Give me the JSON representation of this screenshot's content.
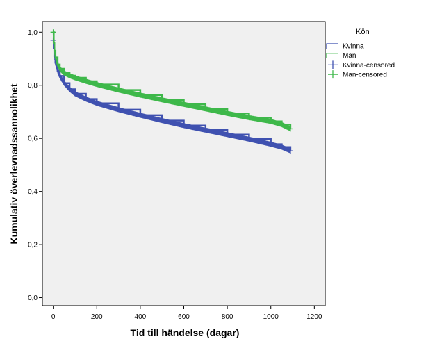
{
  "chart_data": {
    "type": "line",
    "subtype": "kaplan-meier survival",
    "title": "",
    "xlabel": "Tid till händelse (dagar)",
    "ylabel": "Kumulativ överlevnadssannolikhet",
    "xlim": [
      -50,
      1250
    ],
    "ylim": [
      -0.03,
      1.04
    ],
    "xticks": [
      0,
      200,
      400,
      600,
      800,
      1000,
      1200
    ],
    "xtick_labels": [
      "0",
      "200",
      "400",
      "600",
      "800",
      "1000",
      "1200"
    ],
    "yticks": [
      0.0,
      0.2,
      0.4,
      0.6,
      0.8,
      1.0
    ],
    "ytick_labels": [
      "0,0",
      "0,2",
      "0,4",
      "0,6",
      "0,8",
      "1,0"
    ],
    "grid": false,
    "plot_background": "#f0f0f0",
    "legend": {
      "title": "Kön",
      "placement": "right",
      "entries": [
        {
          "label": "Kvinna",
          "color": "#3f51b0",
          "symbol": "step"
        },
        {
          "label": "Man",
          "color": "#3eb84a",
          "symbol": "step"
        },
        {
          "label": "Kvinna-censored",
          "color": "#3f51b0",
          "symbol": "plus"
        },
        {
          "label": "Man-censored",
          "color": "#3eb84a",
          "symbol": "plus"
        }
      ]
    },
    "series": [
      {
        "name": "Kvinna",
        "color": "#3f51b0",
        "x": [
          0,
          2,
          5,
          10,
          20,
          30,
          50,
          75,
          100,
          150,
          200,
          300,
          400,
          500,
          600,
          700,
          800,
          900,
          1000,
          1050,
          1090
        ],
        "y": [
          0.97,
          0.94,
          0.91,
          0.885,
          0.855,
          0.835,
          0.808,
          0.785,
          0.768,
          0.748,
          0.732,
          0.708,
          0.687,
          0.667,
          0.648,
          0.631,
          0.614,
          0.597,
          0.578,
          0.567,
          0.553
        ]
      },
      {
        "name": "Man",
        "color": "#3eb84a",
        "x": [
          0,
          2,
          5,
          10,
          20,
          30,
          50,
          75,
          100,
          150,
          200,
          300,
          400,
          500,
          600,
          700,
          800,
          900,
          1000,
          1050,
          1090
        ],
        "y": [
          1.0,
          0.96,
          0.93,
          0.905,
          0.878,
          0.862,
          0.846,
          0.836,
          0.828,
          0.815,
          0.803,
          0.782,
          0.763,
          0.745,
          0.728,
          0.711,
          0.694,
          0.678,
          0.664,
          0.652,
          0.636
        ]
      }
    ]
  }
}
